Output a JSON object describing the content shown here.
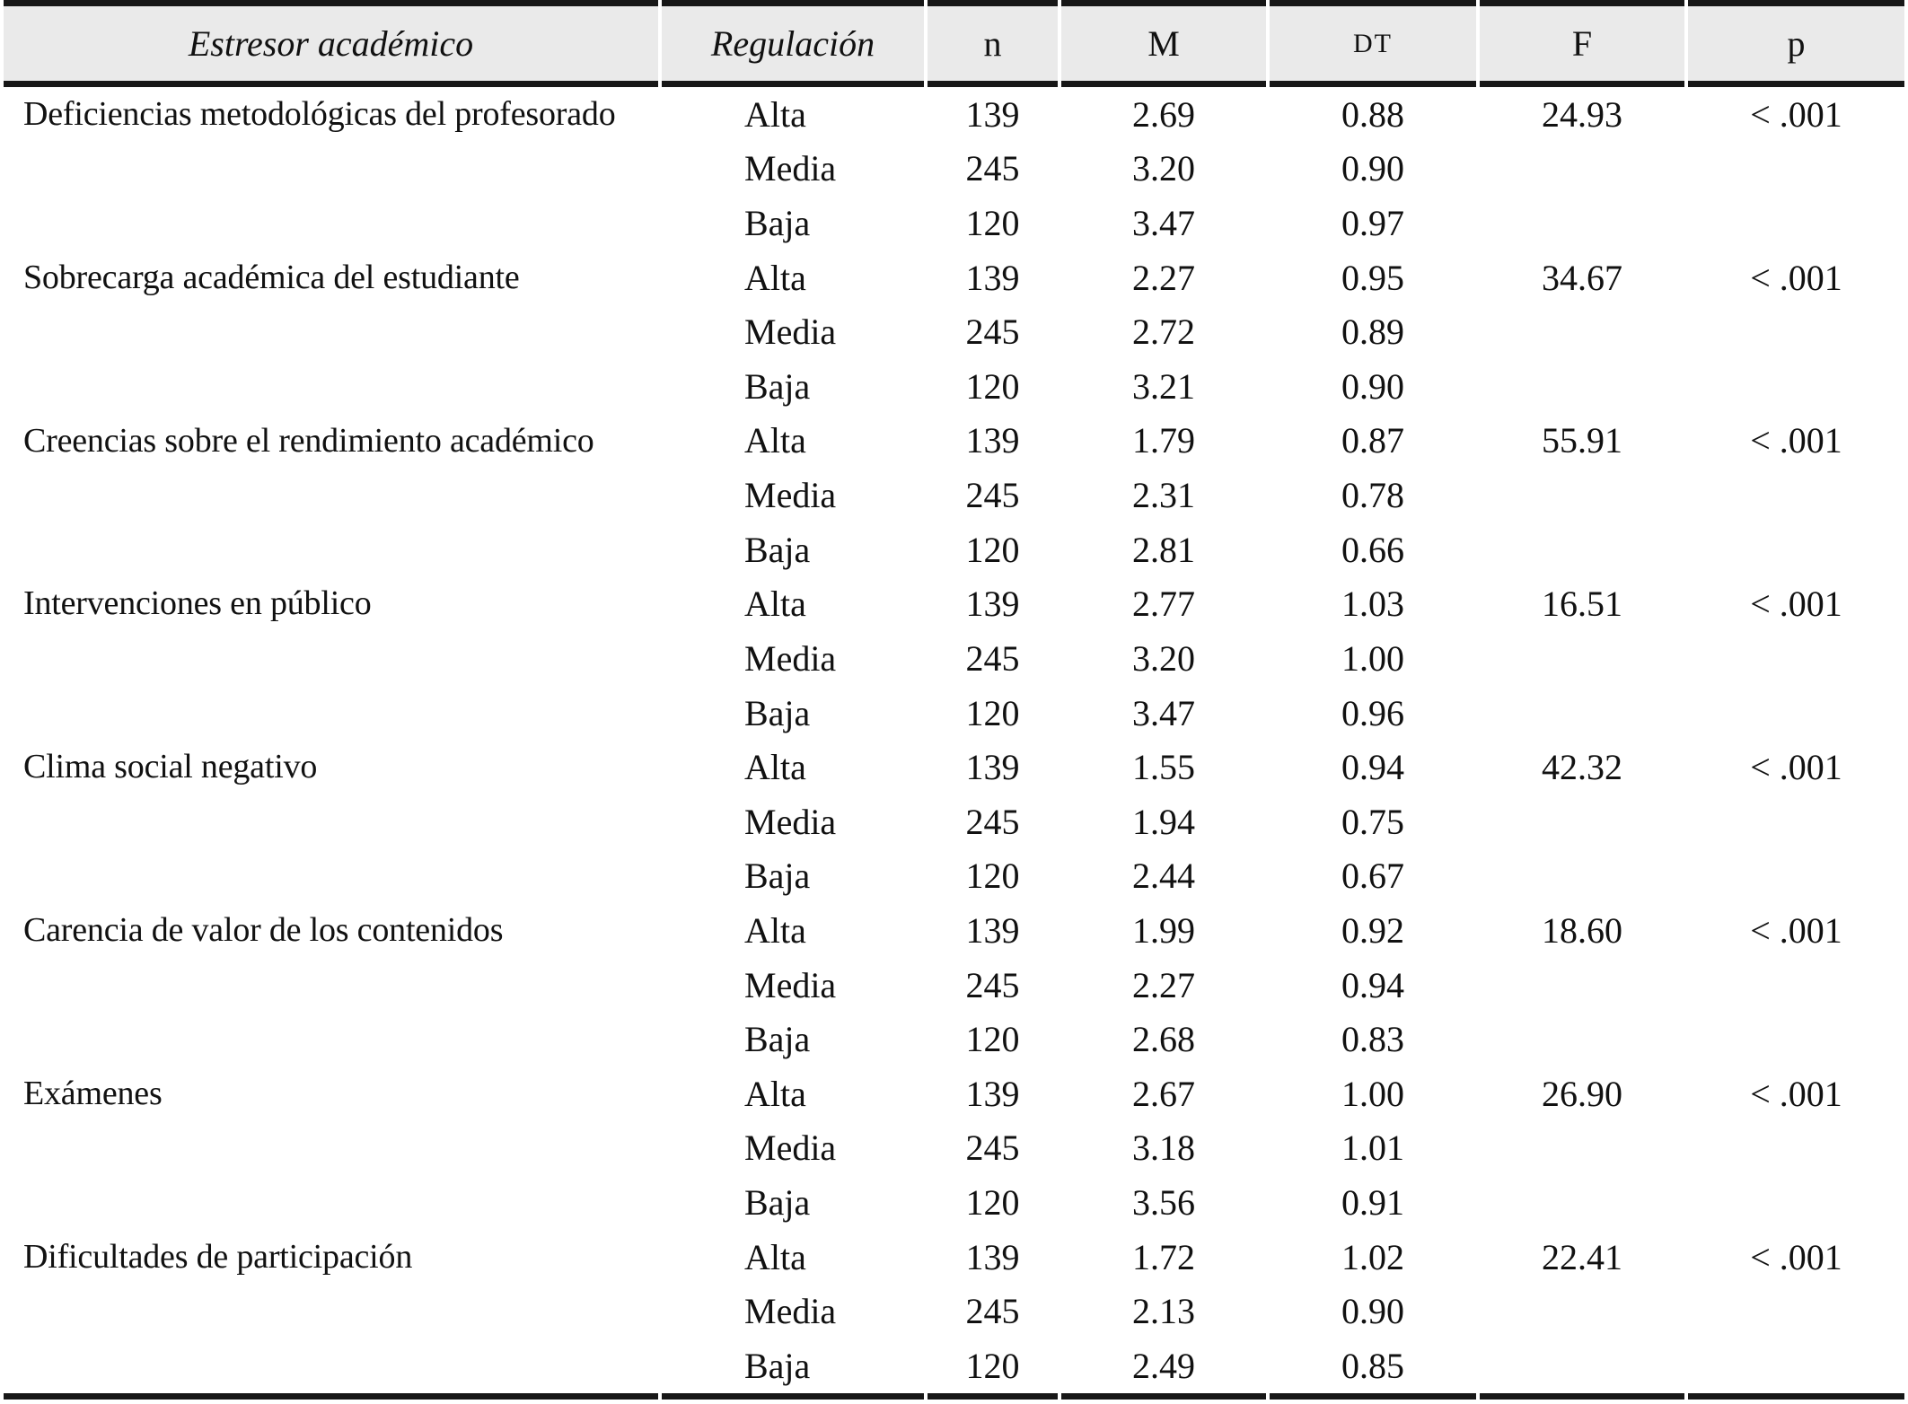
{
  "page": {
    "background": "#ffffff",
    "text_color": "#111111"
  },
  "table": {
    "header_bg": "#eaeaea",
    "rule_color": "#171717",
    "header": {
      "estresor": "Estresor académico",
      "regulacion": "Regulación",
      "n": "n",
      "m": "M",
      "dt": "DT",
      "f": "F",
      "p": "p"
    },
    "blocks": [
      {
        "stressor": "Deficiencias metodológicas del profesorado",
        "levels": [
          {
            "regulation": "Alta",
            "n": "139",
            "m": "2.69",
            "dt": "0.88",
            "f": "24.93",
            "p": "< .001"
          },
          {
            "regulation": "Media",
            "n": "245",
            "m": "3.20",
            "dt": "0.90",
            "f": "",
            "p": ""
          },
          {
            "regulation": "Baja",
            "n": "120",
            "m": "3.47",
            "dt": "0.97",
            "f": "",
            "p": ""
          }
        ]
      },
      {
        "stressor": "Sobrecarga académica del estudiante",
        "levels": [
          {
            "regulation": "Alta",
            "n": "139",
            "m": "2.27",
            "dt": "0.95",
            "f": "34.67",
            "p": "< .001"
          },
          {
            "regulation": "Media",
            "n": "245",
            "m": "2.72",
            "dt": "0.89",
            "f": "",
            "p": ""
          },
          {
            "regulation": "Baja",
            "n": "120",
            "m": "3.21",
            "dt": "0.90",
            "f": "",
            "p": ""
          }
        ]
      },
      {
        "stressor": "Creencias sobre el rendimiento académico",
        "levels": [
          {
            "regulation": "Alta",
            "n": "139",
            "m": "1.79",
            "dt": "0.87",
            "f": "55.91",
            "p": "< .001"
          },
          {
            "regulation": "Media",
            "n": "245",
            "m": "2.31",
            "dt": "0.78",
            "f": "",
            "p": ""
          },
          {
            "regulation": "Baja",
            "n": "120",
            "m": "2.81",
            "dt": "0.66",
            "f": "",
            "p": ""
          }
        ]
      },
      {
        "stressor": "Intervenciones en público",
        "levels": [
          {
            "regulation": "Alta",
            "n": "139",
            "m": "2.77",
            "dt": "1.03",
            "f": "16.51",
            "p": "< .001"
          },
          {
            "regulation": "Media",
            "n": "245",
            "m": "3.20",
            "dt": "1.00",
            "f": "",
            "p": ""
          },
          {
            "regulation": "Baja",
            "n": "120",
            "m": "3.47",
            "dt": "0.96",
            "f": "",
            "p": ""
          }
        ]
      },
      {
        "stressor": "Clima social negativo",
        "levels": [
          {
            "regulation": "Alta",
            "n": "139",
            "m": "1.55",
            "dt": "0.94",
            "f": "42.32",
            "p": "< .001"
          },
          {
            "regulation": "Media",
            "n": "245",
            "m": "1.94",
            "dt": "0.75",
            "f": "",
            "p": ""
          },
          {
            "regulation": "Baja",
            "n": "120",
            "m": "2.44",
            "dt": "0.67",
            "f": "",
            "p": ""
          }
        ]
      },
      {
        "stressor": "Carencia de valor de los contenidos",
        "levels": [
          {
            "regulation": "Alta",
            "n": "139",
            "m": "1.99",
            "dt": "0.92",
            "f": "18.60",
            "p": "< .001"
          },
          {
            "regulation": "Media",
            "n": "245",
            "m": "2.27",
            "dt": "0.94",
            "f": "",
            "p": ""
          },
          {
            "regulation": "Baja",
            "n": "120",
            "m": "2.68",
            "dt": "0.83",
            "f": "",
            "p": ""
          }
        ]
      },
      {
        "stressor": "Exámenes",
        "levels": [
          {
            "regulation": "Alta",
            "n": "139",
            "m": "2.67",
            "dt": "1.00",
            "f": "26.90",
            "p": "< .001"
          },
          {
            "regulation": "Media",
            "n": "245",
            "m": "3.18",
            "dt": "1.01",
            "f": "",
            "p": ""
          },
          {
            "regulation": "Baja",
            "n": "120",
            "m": "3.56",
            "dt": "0.91",
            "f": "",
            "p": ""
          }
        ]
      },
      {
        "stressor": "Dificultades de participación",
        "levels": [
          {
            "regulation": "Alta",
            "n": "139",
            "m": "1.72",
            "dt": "1.02",
            "f": "22.41",
            "p": "< .001"
          },
          {
            "regulation": "Media",
            "n": "245",
            "m": "2.13",
            "dt": "0.90",
            "f": "",
            "p": ""
          },
          {
            "regulation": "Baja",
            "n": "120",
            "m": "2.49",
            "dt": "0.85",
            "f": "",
            "p": ""
          }
        ]
      }
    ]
  }
}
